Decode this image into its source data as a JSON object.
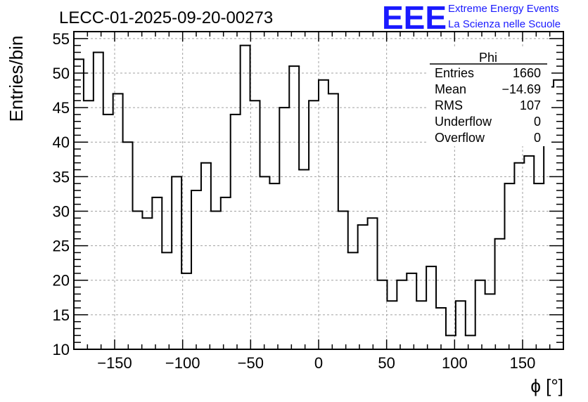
{
  "chart_data": {
    "type": "histogram",
    "title": "LECC-01-2025-09-20-00273",
    "xlabel": "ϕ [°]",
    "ylabel": "Entries/bin",
    "xlim": [
      -180,
      180
    ],
    "ylim": [
      10,
      56
    ],
    "bin_width": 7.2,
    "grid": true,
    "x_ticks": [
      -150,
      -100,
      -50,
      0,
      50,
      100,
      150
    ],
    "x_tick_labels": [
      "−150",
      "−100",
      "−50",
      "0",
      "50",
      "100",
      "150"
    ],
    "y_ticks": [
      10,
      15,
      20,
      25,
      30,
      35,
      40,
      45,
      50,
      55
    ],
    "bin_low_edges": [
      -180,
      -172.8,
      -165.6,
      -158.4,
      -151.2,
      -144,
      -136.8,
      -129.6,
      -122.4,
      -115.2,
      -108,
      -100.8,
      -93.6,
      -86.4,
      -79.2,
      -72,
      -64.8,
      -57.6,
      -50.4,
      -43.2,
      -36,
      -28.8,
      -21.6,
      -14.4,
      -7.2,
      0,
      7.2,
      14.4,
      21.6,
      28.8,
      36,
      43.2,
      50.4,
      57.6,
      64.8,
      72,
      79.2,
      86.4,
      93.6,
      100.8,
      108,
      115.2,
      122.4,
      129.6,
      136.8,
      144,
      151.2,
      158.4,
      165.6,
      172.8
    ],
    "values": [
      52,
      46,
      53,
      44,
      47,
      40,
      30,
      29,
      32,
      24,
      35,
      21,
      33,
      37,
      30,
      32,
      44,
      54,
      46,
      35,
      34,
      45,
      51,
      36,
      46,
      49,
      47,
      30,
      24,
      28,
      29,
      20,
      17,
      20,
      21,
      17,
      22,
      16,
      12,
      17,
      12,
      20,
      18,
      26,
      34,
      37,
      38,
      34,
      48,
      49
    ],
    "stats": {
      "name": "Phi",
      "rows": [
        {
          "label": "Entries",
          "value": "1660"
        },
        {
          "label": "Mean",
          "value": "−14.69"
        },
        {
          "label": "RMS",
          "value": "107"
        },
        {
          "label": "Underflow",
          "value": "0"
        },
        {
          "label": "Overflow",
          "value": "0"
        }
      ]
    },
    "logo": {
      "mark": "EEE",
      "line1": "Extreme Energy Events",
      "line2": "La Scienza nelle Scuole"
    }
  },
  "colors": {
    "line": "#000000",
    "grid": "#a0a0a0",
    "logo": "#1a1aff"
  }
}
